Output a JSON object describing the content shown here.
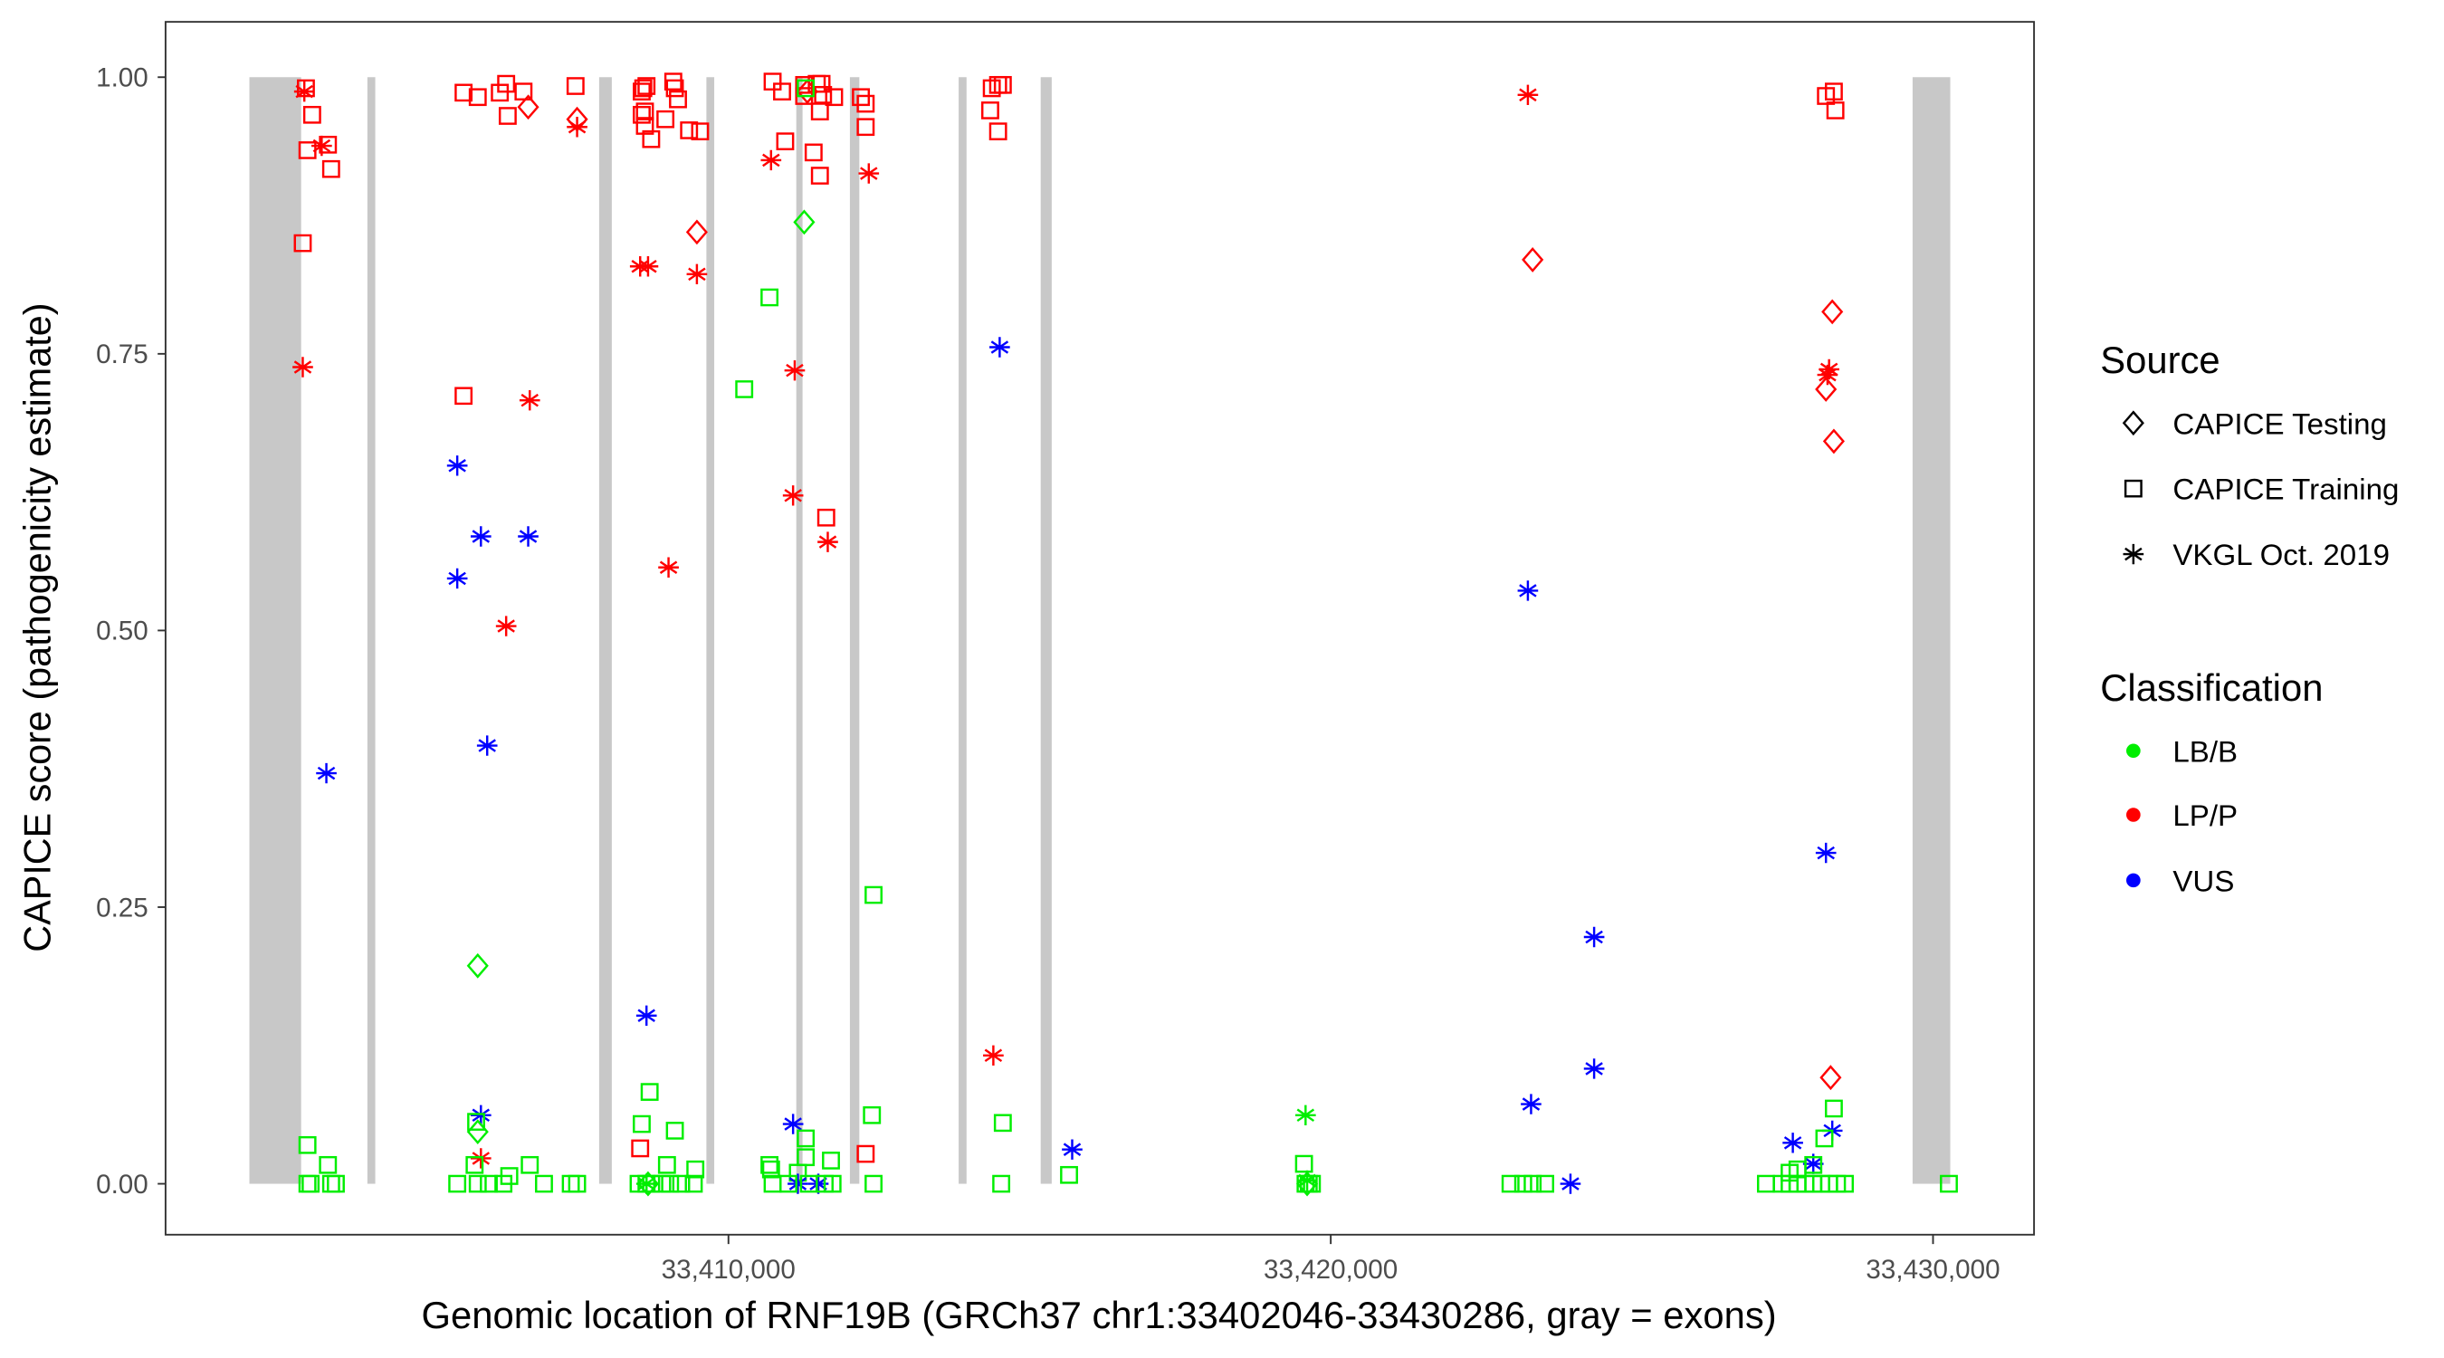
{
  "chart_data": {
    "type": "scatter",
    "xlabel": "Genomic location of RNF19B (GRCh37 chr1:33402046-33430286, gray = exons)",
    "ylabel": "CAPICE score (pathogenicity estimate)",
    "xlim": [
      33400654,
      33431677
    ],
    "ylim": [
      -0.046,
      1.05
    ],
    "x_ticks": [
      33410000,
      33420000,
      33430000
    ],
    "x_tick_labels": [
      "33,410,000",
      "33,420,000",
      "33,430,000"
    ],
    "y_ticks": [
      0,
      0.25,
      0.5,
      0.75,
      1.0
    ],
    "y_tick_labels": [
      "0.00",
      "0.25",
      "0.50",
      "0.75",
      "1.00"
    ],
    "grid": false,
    "exons": [
      [
        33402046,
        33402905
      ],
      [
        33404005,
        33404136
      ],
      [
        33407853,
        33408063
      ],
      [
        33409634,
        33409764
      ],
      [
        33411126,
        33411230
      ],
      [
        33412016,
        33412173
      ],
      [
        33413822,
        33413953
      ],
      [
        33415184,
        33415367
      ],
      [
        33429661,
        33430286
      ]
    ],
    "exon_color": "#c8c8c8",
    "legend_placement": "right",
    "legend": {
      "source_title": "Source",
      "sources": [
        {
          "label": "CAPICE Testing",
          "shape": "diamond"
        },
        {
          "label": "CAPICE Training",
          "shape": "square"
        },
        {
          "label": "VKGL Oct. 2019",
          "shape": "asterisk"
        }
      ],
      "class_title": "Classification",
      "classes": [
        {
          "label": "LB/B",
          "color": "#00ee00"
        },
        {
          "label": "LP/P",
          "color": "#ff0000"
        },
        {
          "label": "VUS",
          "color": "#0000ff"
        }
      ]
    },
    "point_fields": [
      "position",
      "score",
      "source_index",
      "class_index"
    ],
    "points": [
      [
        33402984,
        0.99,
        1,
        1
      ],
      [
        33402958,
        0.987,
        2,
        1
      ],
      [
        33403088,
        0.966,
        1,
        1
      ],
      [
        33403010,
        0.934,
        1,
        1
      ],
      [
        33403246,
        0.938,
        2,
        1
      ],
      [
        33403350,
        0.939,
        1,
        1
      ],
      [
        33403403,
        0.917,
        1,
        1
      ],
      [
        33402932,
        0.85,
        1,
        1
      ],
      [
        33402932,
        0.738,
        2,
        1
      ],
      [
        33403324,
        0.371,
        2,
        2
      ],
      [
        33403010,
        0.035,
        1,
        0
      ],
      [
        33403350,
        0.017,
        1,
        0
      ],
      [
        33403010,
        0,
        1,
        0
      ],
      [
        33403062,
        0,
        1,
        0
      ],
      [
        33403481,
        0,
        1,
        0
      ],
      [
        33403403,
        0,
        1,
        0
      ],
      [
        33405602,
        0.986,
        1,
        1
      ],
      [
        33405837,
        0.982,
        1,
        1
      ],
      [
        33406204,
        0.986,
        1,
        1
      ],
      [
        33406309,
        0.994,
        1,
        1
      ],
      [
        33406597,
        0.987,
        1,
        1
      ],
      [
        33406335,
        0.965,
        1,
        1
      ],
      [
        33406675,
        0.973,
        0,
        1
      ],
      [
        33405602,
        0.712,
        1,
        1
      ],
      [
        33406701,
        0.708,
        2,
        1
      ],
      [
        33406309,
        0.504,
        2,
        1
      ],
      [
        33405497,
        0.649,
        2,
        2
      ],
      [
        33405890,
        0.585,
        2,
        2
      ],
      [
        33406675,
        0.585,
        2,
        2
      ],
      [
        33405497,
        0.547,
        2,
        2
      ],
      [
        33405994,
        0.396,
        2,
        2
      ],
      [
        33405890,
        0.062,
        2,
        2
      ],
      [
        33405837,
        0.197,
        0,
        0
      ],
      [
        33405837,
        0.047,
        0,
        0
      ],
      [
        33405811,
        0.056,
        1,
        0
      ],
      [
        33405890,
        0.023,
        2,
        1
      ],
      [
        33405785,
        0.017,
        1,
        0
      ],
      [
        33405497,
        0,
        1,
        0
      ],
      [
        33405837,
        0,
        1,
        0
      ],
      [
        33406021,
        0,
        1,
        0
      ],
      [
        33406263,
        0,
        1,
        0
      ],
      [
        33406361,
        0.007,
        1,
        0
      ],
      [
        33406701,
        0.017,
        1,
        0
      ],
      [
        33406937,
        0,
        1,
        0
      ],
      [
        33407461,
        0.992,
        1,
        1
      ],
      [
        33407487,
        0.962,
        0,
        1
      ],
      [
        33407487,
        0.955,
        2,
        1
      ],
      [
        33407382,
        0,
        1,
        0
      ],
      [
        33407487,
        0,
        1,
        0
      ],
      [
        33408586,
        0.99,
        1,
        1
      ],
      [
        33408639,
        0.992,
        1,
        1
      ],
      [
        33408560,
        0.987,
        1,
        1
      ],
      [
        33409084,
        0.996,
        1,
        1
      ],
      [
        33409110,
        0.99,
        1,
        1
      ],
      [
        33408613,
        0.969,
        1,
        1
      ],
      [
        33408560,
        0.966,
        1,
        1
      ],
      [
        33408717,
        0.944,
        1,
        1
      ],
      [
        33409162,
        0.98,
        1,
        1
      ],
      [
        33408953,
        0.962,
        1,
        1
      ],
      [
        33409346,
        0.952,
        1,
        1
      ],
      [
        33409529,
        0.951,
        1,
        1
      ],
      [
        33408613,
        0.956,
        1,
        1
      ],
      [
        33409476,
        0.86,
        0,
        1
      ],
      [
        33408534,
        0.829,
        2,
        1
      ],
      [
        33408665,
        0.829,
        2,
        1
      ],
      [
        33409476,
        0.822,
        2,
        1
      ],
      [
        33409005,
        0.557,
        2,
        1
      ],
      [
        33408639,
        0.152,
        2,
        2
      ],
      [
        33408691,
        0.083,
        1,
        0
      ],
      [
        33408560,
        0.054,
        1,
        0
      ],
      [
        33409110,
        0.048,
        1,
        0
      ],
      [
        33408534,
        0.032,
        1,
        1
      ],
      [
        33408979,
        0.017,
        1,
        0
      ],
      [
        33409450,
        0.013,
        1,
        0
      ],
      [
        33408508,
        0,
        1,
        0
      ],
      [
        33408639,
        0,
        1,
        0
      ],
      [
        33408717,
        0,
        1,
        0
      ],
      [
        33408900,
        0,
        1,
        0
      ],
      [
        33409031,
        0,
        1,
        0
      ],
      [
        33409215,
        0,
        1,
        0
      ],
      [
        33409424,
        0,
        1,
        0
      ],
      [
        33408665,
        0,
        0,
        0
      ],
      [
        33408639,
        0,
        2,
        0
      ],
      [
        33410733,
        0.996,
        1,
        1
      ],
      [
        33410890,
        0.987,
        1,
        1
      ],
      [
        33411257,
        0.993,
        1,
        1
      ],
      [
        33411466,
        0.994,
        1,
        1
      ],
      [
        33411545,
        0.994,
        1,
        1
      ],
      [
        33411257,
        0.983,
        1,
        1
      ],
      [
        33411571,
        0.984,
        1,
        1
      ],
      [
        33411754,
        0.982,
        1,
        1
      ],
      [
        33411518,
        0.969,
        1,
        1
      ],
      [
        33410942,
        0.942,
        1,
        1
      ],
      [
        33411414,
        0.932,
        1,
        1
      ],
      [
        33411518,
        0.911,
        1,
        1
      ],
      [
        33411623,
        0.602,
        1,
        1
      ],
      [
        33411309,
        0.987,
        0,
        1
      ],
      [
        33410707,
        0.925,
        2,
        1
      ],
      [
        33411100,
        0.735,
        2,
        1
      ],
      [
        33411073,
        0.622,
        2,
        1
      ],
      [
        33411649,
        0.58,
        2,
        1
      ],
      [
        33411283,
        0.99,
        1,
        0
      ],
      [
        33411257,
        0.869,
        0,
        0
      ],
      [
        33410681,
        0.801,
        1,
        0
      ],
      [
        33410262,
        0.718,
        1,
        0
      ],
      [
        33411073,
        0.054,
        2,
        2
      ],
      [
        33411283,
        0.041,
        1,
        0
      ],
      [
        33411702,
        0.021,
        1,
        0
      ],
      [
        33410681,
        0.017,
        1,
        0
      ],
      [
        33410707,
        0.013,
        1,
        0
      ],
      [
        33411283,
        0.024,
        1,
        0
      ],
      [
        33411152,
        0.01,
        1,
        0
      ],
      [
        33411152,
        0,
        2,
        2
      ],
      [
        33411492,
        0,
        2,
        2
      ],
      [
        33410733,
        0,
        1,
        0
      ],
      [
        33410995,
        0,
        1,
        0
      ],
      [
        33411335,
        0,
        1,
        0
      ],
      [
        33411597,
        0,
        1,
        0
      ],
      [
        33411728,
        0,
        1,
        0
      ],
      [
        33412199,
        0.982,
        1,
        1
      ],
      [
        33412278,
        0.976,
        1,
        1
      ],
      [
        33412278,
        0.955,
        1,
        1
      ],
      [
        33412330,
        0.913,
        2,
        1
      ],
      [
        33412409,
        0.261,
        1,
        0
      ],
      [
        33412382,
        0.062,
        1,
        0
      ],
      [
        33412278,
        0.027,
        1,
        1
      ],
      [
        33412409,
        0,
        1,
        0
      ],
      [
        33414372,
        0.99,
        1,
        1
      ],
      [
        33414477,
        0.993,
        1,
        1
      ],
      [
        33414555,
        0.993,
        1,
        1
      ],
      [
        33414346,
        0.97,
        1,
        1
      ],
      [
        33414477,
        0.951,
        1,
        1
      ],
      [
        33414503,
        0.756,
        2,
        2
      ],
      [
        33414398,
        0.116,
        2,
        1
      ],
      [
        33414555,
        0.055,
        1,
        0
      ],
      [
        33414529,
        0,
        1,
        0
      ],
      [
        33415655,
        0.008,
        1,
        0
      ],
      [
        33415707,
        0.031,
        2,
        2
      ],
      [
        33419582,
        0.062,
        2,
        0
      ],
      [
        33419556,
        0.018,
        1,
        0
      ],
      [
        33419582,
        0,
        1,
        0
      ],
      [
        33419634,
        0,
        1,
        0
      ],
      [
        33419687,
        0,
        1,
        0
      ],
      [
        33419608,
        0,
        0,
        0
      ],
      [
        33419608,
        0.003,
        2,
        0
      ],
      [
        33423273,
        0.984,
        2,
        1
      ],
      [
        33423352,
        0.835,
        0,
        1
      ],
      [
        33423273,
        0.536,
        2,
        2
      ],
      [
        33424373,
        0.223,
        2,
        2
      ],
      [
        33424373,
        0.104,
        2,
        2
      ],
      [
        33423326,
        0.072,
        2,
        2
      ],
      [
        33423980,
        0,
        2,
        2
      ],
      [
        33422985,
        0,
        1,
        0
      ],
      [
        33423195,
        0,
        1,
        0
      ],
      [
        33423352,
        0,
        1,
        0
      ],
      [
        33423561,
        0,
        1,
        0
      ],
      [
        33428222,
        0.983,
        1,
        1
      ],
      [
        33428353,
        0.987,
        1,
        1
      ],
      [
        33428379,
        0.97,
        1,
        1
      ],
      [
        33428327,
        0.788,
        0,
        1
      ],
      [
        33428274,
        0.736,
        2,
        1
      ],
      [
        33428248,
        0.731,
        2,
        1
      ],
      [
        33428222,
        0.718,
        0,
        1
      ],
      [
        33428353,
        0.671,
        0,
        1
      ],
      [
        33428222,
        0.299,
        2,
        2
      ],
      [
        33428300,
        0.096,
        0,
        1
      ],
      [
        33428353,
        0.068,
        1,
        0
      ],
      [
        33428327,
        0.048,
        2,
        2
      ],
      [
        33428196,
        0.041,
        1,
        0
      ],
      [
        33427672,
        0.037,
        2,
        2
      ],
      [
        33428012,
        0.018,
        2,
        2
      ],
      [
        33427750,
        0.013,
        1,
        0
      ],
      [
        33427619,
        0.01,
        1,
        0
      ],
      [
        33428012,
        0.017,
        1,
        0
      ],
      [
        33427226,
        0,
        1,
        0
      ],
      [
        33427488,
        0,
        1,
        0
      ],
      [
        33427619,
        0,
        1,
        0
      ],
      [
        33427750,
        0,
        1,
        0
      ],
      [
        33427881,
        0,
        1,
        0
      ],
      [
        33428012,
        0,
        1,
        0
      ],
      [
        33428143,
        0,
        1,
        0
      ],
      [
        33428274,
        0,
        1,
        0
      ],
      [
        33428405,
        0,
        1,
        0
      ],
      [
        33428536,
        0,
        1,
        0
      ],
      [
        33430263,
        0,
        1,
        0
      ]
    ]
  }
}
